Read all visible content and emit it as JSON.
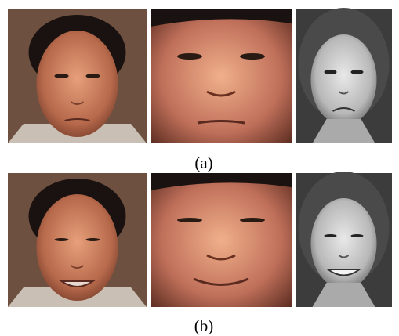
{
  "figure": {
    "rows": [
      {
        "label": "(a)"
      },
      {
        "label": "(b)"
      }
    ]
  }
}
